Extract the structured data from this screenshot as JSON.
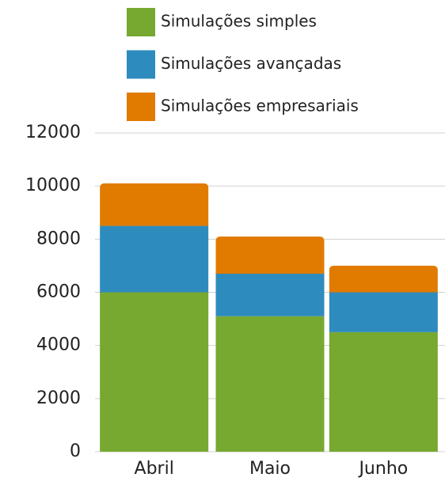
{
  "chart_data": {
    "type": "stacked_bar",
    "categories": [
      "Abril",
      "Maio",
      "Junho"
    ],
    "series": [
      {
        "name": "Simulações simples",
        "color": "#77a830",
        "values": [
          6000,
          5100,
          4500
        ]
      },
      {
        "name": "Simulações avançadas",
        "color": "#2e8bbd",
        "values": [
          2500,
          1600,
          1500
        ]
      },
      {
        "name": "Simulações empresariais",
        "color": "#e07b00",
        "values": [
          1600,
          1400,
          1000
        ]
      }
    ],
    "ylim": [
      0,
      12000
    ],
    "yticks": [
      0,
      2000,
      4000,
      6000,
      8000,
      10000,
      12000
    ],
    "grid": true
  }
}
